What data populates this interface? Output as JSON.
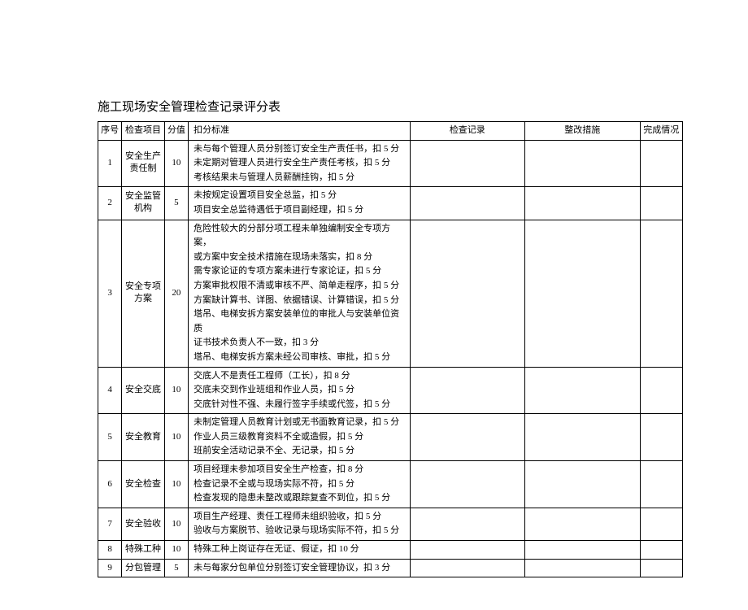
{
  "title": "施工现场安全管理检查记录评分表",
  "headers": {
    "seq": "序号",
    "item": "检查项目",
    "score": "分值",
    "criteria": "扣分标准",
    "record": "检查记录",
    "measure": "整改措施",
    "complete": "完成情况"
  },
  "rows": [
    {
      "seq": "1",
      "item": "安全生产\n责任制",
      "score": "10",
      "criteria": [
        "未与每个管理人员分别签订安全生产责任书，扣 5 分",
        "未定期对管理人员进行安全生产责任考核，扣 5 分",
        "考核结果未与管理人员薪酬挂钩，扣 5 分"
      ]
    },
    {
      "seq": "2",
      "item": "安全监管\n机构",
      "score": "5",
      "criteria": [
        "未按规定设置项目安全总监，扣 5 分",
        "项目安全总监待遇低于项目副经理，扣 5 分"
      ]
    },
    {
      "seq": "3",
      "item": "安全专项\n方案",
      "score": "20",
      "criteria": [
        "危险性较大的分部分项工程未单独编制安全专项方案，",
        "或方案中安全技术措施在现场未落实，扣 8 分",
        "需专家论证的专项方案未进行专家论证，扣 5 分",
        "方案审批权限不清或审核不严、简单走程序，扣 5 分",
        "方案缺计算书、详图、依据错误、计算错误，扣 5 分",
        "塔吊、电梯安拆方案安装单位的审批人与安装单位资质",
        "证书技术负责人不一致，扣 3 分",
        "塔吊、电梯安拆方案未经公司审核、审批，扣 5 分"
      ]
    },
    {
      "seq": "4",
      "item": "安全交底",
      "score": "10",
      "criteria": [
        "交底人不是责任工程师（工长），扣 8 分",
        "交底未交到作业班组和作业人员，扣 5 分",
        "交底针对性不强、未履行签字手续或代签，扣 5 分"
      ]
    },
    {
      "seq": "5",
      "item": "安全教育",
      "score": "10",
      "criteria": [
        "未制定管理人员教育计划或无书面教育记录，扣 5 分",
        "作业人员三级教育资料不全或造假，扣 5 分",
        "班前安全活动记录不全、无记录，扣 5 分"
      ]
    },
    {
      "seq": "6",
      "item": "安全检查",
      "score": "10",
      "criteria": [
        "项目经理未参加项目安全生产检查，扣 8 分",
        "检查记录不全或与现场实际不符，扣 5 分",
        "检查发现的隐患未整改或跟踪复查不到位，扣 5 分"
      ]
    },
    {
      "seq": "7",
      "item": "安全验收",
      "score": "10",
      "criteria": [
        "项目生产经理、责任工程师未组织验收，扣 5 分",
        "验收与方案脱节、验收记录与现场实际不符，扣 5 分"
      ]
    },
    {
      "seq": "8",
      "item": "特殊工种",
      "score": "10",
      "criteria": [
        "特殊工种上岗证存在无证、假证，扣 10 分"
      ]
    },
    {
      "seq": "9",
      "item": "分包管理",
      "score": "5",
      "criteria": [
        "未与每家分包单位分别签订安全管理协议，扣 3 分"
      ]
    }
  ]
}
